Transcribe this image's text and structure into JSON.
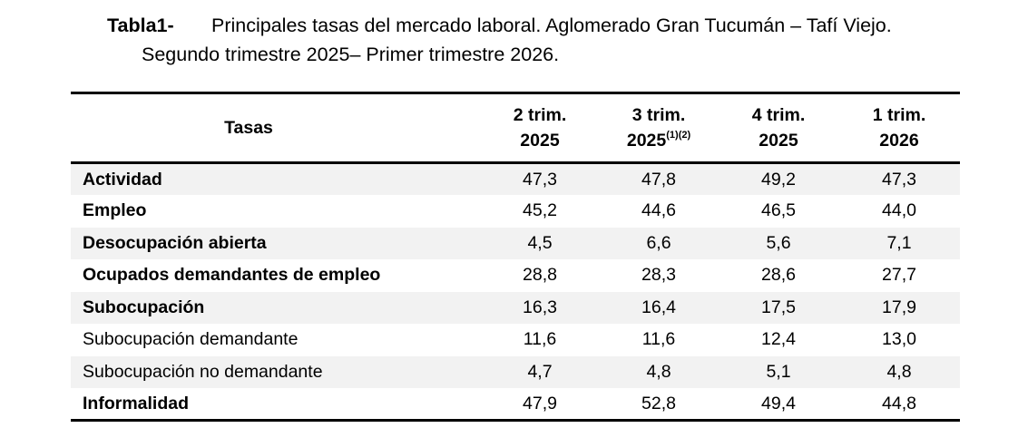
{
  "caption": {
    "label": "Tabla1-",
    "line1": "Principales tasas del mercado laboral. Aglomerado Gran Tucumán – Tafí Viejo.",
    "line2": "Segundo trimestre 2025– Primer trimestre 2026."
  },
  "table": {
    "header": {
      "col0": "Tasas",
      "cols": [
        {
          "line1": "2 trim.",
          "line2": "2025",
          "note": ""
        },
        {
          "line1": "3 trim.",
          "line2": "2025",
          "note": "(1)(2)"
        },
        {
          "line1": "4 trim.",
          "line2": "2025",
          "note": ""
        },
        {
          "line1": "1 trim.",
          "line2": "2026",
          "note": ""
        }
      ]
    },
    "rows": [
      {
        "label": "Actividad",
        "bold": true,
        "shaded": true,
        "values": [
          "47,3",
          "47,8",
          "49,2",
          "47,3"
        ]
      },
      {
        "label": "Empleo",
        "bold": true,
        "shaded": false,
        "values": [
          "45,2",
          "44,6",
          "46,5",
          "44,0"
        ]
      },
      {
        "label": "Desocupación abierta",
        "bold": true,
        "shaded": true,
        "values": [
          "4,5",
          "6,6",
          "5,6",
          "7,1"
        ]
      },
      {
        "label": "Ocupados demandantes de empleo",
        "bold": true,
        "shaded": false,
        "values": [
          "28,8",
          "28,3",
          "28,6",
          "27,7"
        ]
      },
      {
        "label": "Subocupación",
        "bold": true,
        "shaded": true,
        "values": [
          "16,3",
          "16,4",
          "17,5",
          "17,9"
        ]
      },
      {
        "label": "Subocupación demandante",
        "bold": false,
        "shaded": false,
        "values": [
          "11,6",
          "11,6",
          "12,4",
          "13,0"
        ]
      },
      {
        "label": "Subocupación no demandante",
        "bold": false,
        "shaded": true,
        "values": [
          "4,7",
          "4,8",
          "5,1",
          "4,8"
        ]
      },
      {
        "label": "Informalidad",
        "bold": true,
        "shaded": false,
        "values": [
          "47,9",
          "52,8",
          "49,4",
          "44,8"
        ]
      }
    ]
  }
}
